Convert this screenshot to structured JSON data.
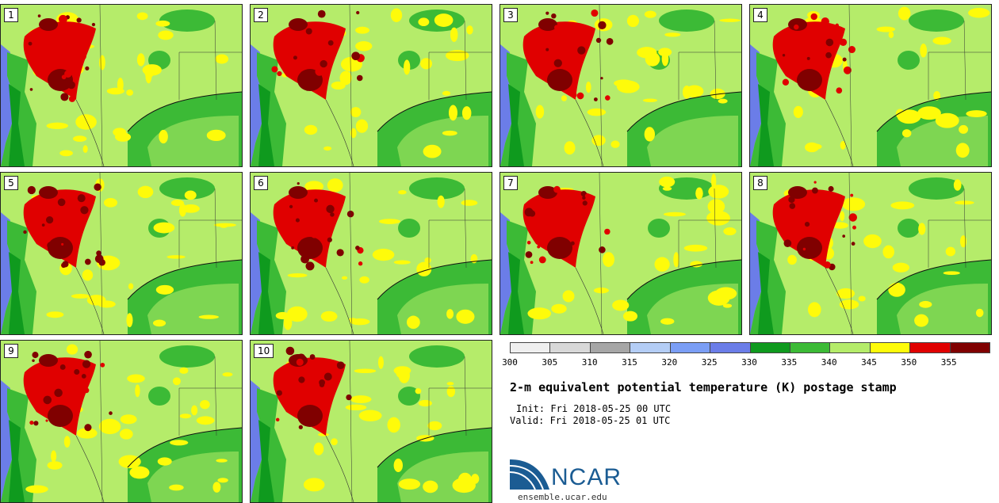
{
  "panels": [
    {
      "label": "1"
    },
    {
      "label": "2"
    },
    {
      "label": "3"
    },
    {
      "label": "4"
    },
    {
      "label": "5"
    },
    {
      "label": "6"
    },
    {
      "label": "7"
    },
    {
      "label": "8"
    },
    {
      "label": "9"
    },
    {
      "label": "10"
    }
  ],
  "colorbar": {
    "colors": [
      "#efefef",
      "#d8d8d8",
      "#a6a6a6",
      "#b4cdf5",
      "#7b9ef5",
      "#6b7de8",
      "#0f9a1e",
      "#3cba36",
      "#b5ec6a",
      "#fefb0a",
      "#e00000",
      "#800000"
    ],
    "ticks": [
      "300",
      "305",
      "310",
      "315",
      "320",
      "325",
      "330",
      "335",
      "340",
      "345",
      "350",
      "355"
    ]
  },
  "title": "2-m equivalent potential temperature (K) postage stamp",
  "init": "Init: Fri 2018-05-25 00 UTC",
  "valid": "Valid: Fri 2018-05-25 01 UTC",
  "logo_text": "NCAR",
  "url": "ensemble.ucar.edu"
}
